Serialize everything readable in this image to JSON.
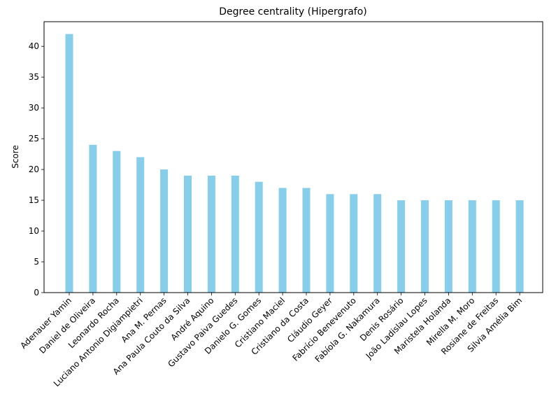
{
  "chart_data": {
    "type": "bar",
    "title": "Degree centrality (Hipergrafo)",
    "xlabel": "",
    "ylabel": "Score",
    "ylim": [
      0,
      44
    ],
    "yticks": [
      0,
      5,
      10,
      15,
      20,
      25,
      30,
      35,
      40
    ],
    "grid": false,
    "bar_color": "#87CEEB",
    "categories": [
      "Adenauer Yamin",
      "Daniel de Oliveira",
      "Leonardo Rocha",
      "Luciano Antonio Digiampietri",
      "Ana M. Pernas",
      "Ana Paula Couto da Silva",
      "André Aquino",
      "Gustavo Paiva Guedes",
      "Danielo G. Gomes",
      "Cristiano Maciel",
      "Cristiano da Costa",
      "Cláudio Geyer",
      "Fabrício Benevenuto",
      "Fabíola G. Nakamura",
      "Denis Rosário",
      "João Ladislau Lopes",
      "Maristela Holanda",
      "Mirella M. Moro",
      "Rosiane de Freitas",
      "Silvia Amélia Bim"
    ],
    "values": [
      42,
      24,
      23,
      22,
      20,
      19,
      19,
      19,
      18,
      17,
      17,
      16,
      16,
      16,
      15,
      15,
      15,
      15,
      15,
      15
    ]
  }
}
